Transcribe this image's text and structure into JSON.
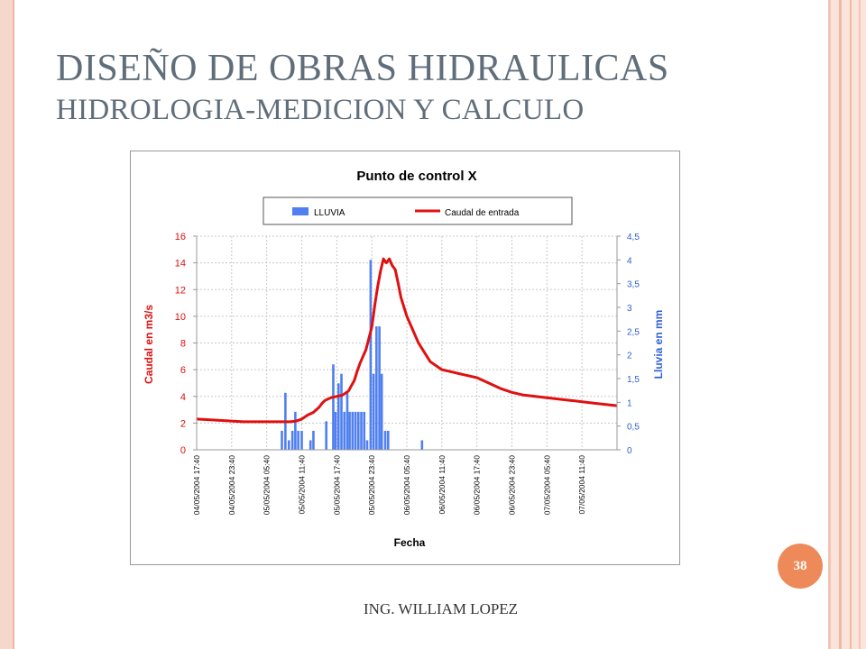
{
  "slide": {
    "title_line1": "DISEÑO DE OBRAS HIDRAULICAS",
    "title_line2": "HIDROLOGIA-MEDICION Y CALCULO",
    "page_number": "38",
    "footer": "ING. WILLIAM LOPEZ"
  },
  "colors": {
    "title": "#5f6e7a",
    "accent_badge": "#ee8a5a",
    "rain_bars": "#4f7ff0",
    "flow_line": "#e01010",
    "left_axis": "#e01010",
    "right_axis": "#2f5fd8"
  },
  "chart_data": {
    "type": "bar+line",
    "title": "Punto de control X",
    "xlabel": "Fecha",
    "ylabel_left": "Caudal en m3/s",
    "ylabel_right": "Lluvia en mm",
    "ylim_left": [
      0,
      16
    ],
    "ylim_right": [
      0,
      4.5
    ],
    "left_ticks": [
      "0",
      "2",
      "4",
      "6",
      "8",
      "10",
      "12",
      "14",
      "16"
    ],
    "right_ticks": [
      "0",
      "0,5",
      "1",
      "1,5",
      "2",
      "2,5",
      "3",
      "3,5",
      "4",
      "4,5"
    ],
    "x_tick_labels": [
      "04/05/2004 17:40",
      "04/05/2004 23:40",
      "05/05/2004 05:40",
      "05/05/2004 11:40",
      "05/05/2004 17:40",
      "05/05/2004 23:40",
      "06/05/2004 05:40",
      "06/05/2004 11:40",
      "06/05/2004 17:40",
      "06/05/2004 23:40",
      "07/05/2004 05:40",
      "07/05/2004 11:40"
    ],
    "x_unit": "hours since 04/05/2004 17:40",
    "x_range": [
      0,
      72
    ],
    "grid": true,
    "legend_position": "top",
    "series": [
      {
        "name": "LLUVIA",
        "kind": "bar",
        "axis": "right",
        "x": [
          14.6,
          15.2,
          15.8,
          16.4,
          16.9,
          17.4,
          18.0,
          19.5,
          20.0,
          22.2,
          23.4,
          23.8,
          24.3,
          24.8,
          25.3,
          25.8,
          26.2,
          26.7,
          27.2,
          27.7,
          28.2,
          28.7,
          29.2,
          29.8,
          30.3,
          30.8,
          31.3,
          31.7,
          32.3,
          32.8,
          38.6
        ],
        "values": [
          0.4,
          1.2,
          0.2,
          0.4,
          0.8,
          0.4,
          0.4,
          0.2,
          0.4,
          0.6,
          1.8,
          0.8,
          1.4,
          1.6,
          0.8,
          1.2,
          0.8,
          0.8,
          0.8,
          0.8,
          0.8,
          0.8,
          0.2,
          4.0,
          1.6,
          2.6,
          2.6,
          1.6,
          0.4,
          0.4,
          0.2
        ]
      },
      {
        "name": "Caudal de entrada",
        "kind": "line",
        "axis": "left",
        "x": [
          0,
          4,
          8,
          12,
          14,
          16,
          17,
          18,
          19,
          20,
          21,
          21.5,
          22,
          23,
          24,
          25,
          26,
          27,
          27.5,
          28,
          29,
          30,
          30.5,
          31,
          31.5,
          32,
          32.5,
          33,
          33.5,
          34,
          34.5,
          35,
          36,
          38,
          40,
          42,
          44,
          46,
          48,
          50,
          52,
          54,
          56,
          60,
          64,
          68,
          72
        ],
        "values": [
          2.3,
          2.2,
          2.1,
          2.1,
          2.1,
          2.1,
          2.15,
          2.3,
          2.6,
          2.8,
          3.2,
          3.5,
          3.7,
          3.9,
          4.0,
          4.1,
          4.4,
          5.2,
          5.9,
          6.5,
          7.5,
          9.2,
          10.8,
          12.2,
          13.4,
          14.3,
          14.0,
          14.3,
          13.8,
          13.5,
          12.5,
          11.4,
          10.0,
          8.0,
          6.6,
          6.0,
          5.8,
          5.6,
          5.4,
          5.0,
          4.6,
          4.3,
          4.1,
          3.9,
          3.7,
          3.5,
          3.3
        ]
      }
    ]
  }
}
